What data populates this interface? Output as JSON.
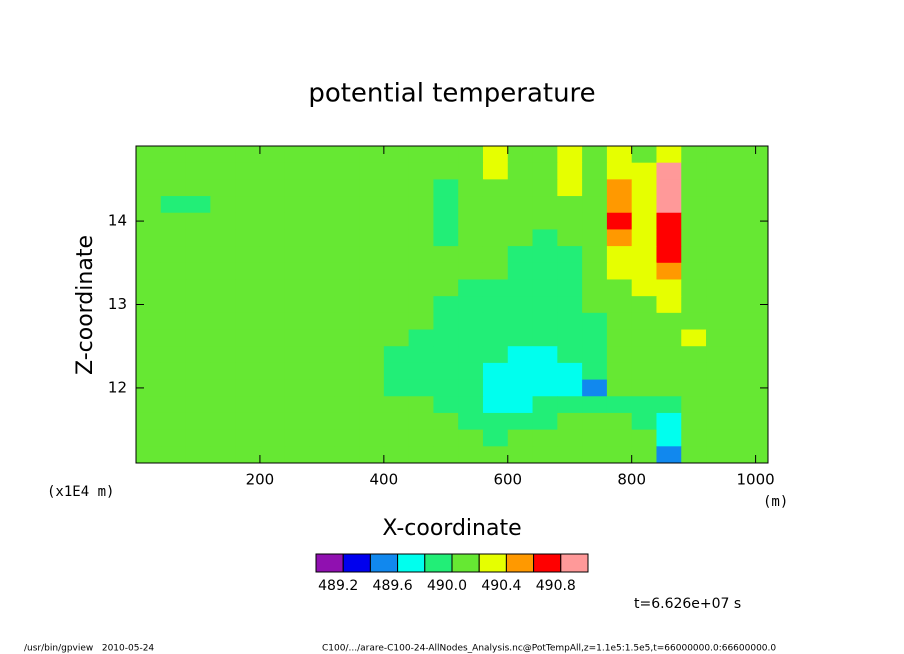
{
  "chart_data": {
    "type": "contour",
    "title": "potential temperature",
    "xlabel": "X-coordinate",
    "ylabel": "Z-coordinate",
    "yunit": "(x1E4 m)",
    "xunit": "(m)",
    "time_label": "t=6.626e+07 s",
    "footer_left": "/usr/bin/gpview   2010-05-24",
    "footer_right": "C100/.../arare-C100-24-AllNodes_Analysis.nc@PotTempAll,z=1.1e5:1.5e5,t=66000000.0:66600000.0",
    "xlim": [
      0,
      1020
    ],
    "ylim": [
      11.1,
      14.9
    ],
    "xticks": [
      200,
      400,
      600,
      800,
      1000
    ],
    "yticks": [
      12,
      13,
      14
    ],
    "x": [
      20,
      60,
      100,
      140,
      180,
      220,
      260,
      300,
      340,
      380,
      420,
      460,
      500,
      540,
      580,
      620,
      660,
      700,
      740,
      780,
      820,
      860,
      900,
      940,
      980
    ],
    "y": [
      14.8,
      14.6,
      14.4,
      14.2,
      14.0,
      13.8,
      13.6,
      13.4,
      13.2,
      13.0,
      12.8,
      12.6,
      12.4,
      12.2,
      12.0,
      11.8,
      11.6,
      11.4,
      11.2
    ],
    "z": [
      [
        490.1,
        490.1,
        490.1,
        490.1,
        490.1,
        490.1,
        490.1,
        490.1,
        490.1,
        490.1,
        490.1,
        490.1,
        490.1,
        490.1,
        490.3,
        490.1,
        490.1,
        490.3,
        490.1,
        490.3,
        490.1,
        490.3,
        490.1,
        490.1,
        490.1
      ],
      [
        490.1,
        490.1,
        490.1,
        490.1,
        490.1,
        490.1,
        490.1,
        490.1,
        490.1,
        490.1,
        490.1,
        490.1,
        490.1,
        490.1,
        490.3,
        490.1,
        490.1,
        490.3,
        490.1,
        490.3,
        490.3,
        490.9,
        490.1,
        490.1,
        490.1
      ],
      [
        490.1,
        490.1,
        490.1,
        490.1,
        490.1,
        490.1,
        490.1,
        490.1,
        490.1,
        490.1,
        490.1,
        490.1,
        489.9,
        490.1,
        490.1,
        490.1,
        490.1,
        490.3,
        490.1,
        490.5,
        490.3,
        490.9,
        490.1,
        490.1,
        490.1
      ],
      [
        490.1,
        489.9,
        489.9,
        490.1,
        490.1,
        490.1,
        490.1,
        490.1,
        490.1,
        490.1,
        490.1,
        490.1,
        489.9,
        490.1,
        490.1,
        490.1,
        490.1,
        490.1,
        490.1,
        490.5,
        490.3,
        490.9,
        490.1,
        490.1,
        490.1
      ],
      [
        490.1,
        490.1,
        490.1,
        490.1,
        490.1,
        490.1,
        490.1,
        490.1,
        490.1,
        490.1,
        490.1,
        490.1,
        489.9,
        490.1,
        490.1,
        490.1,
        490.1,
        490.1,
        490.1,
        490.7,
        490.3,
        490.7,
        490.1,
        490.1,
        490.1
      ],
      [
        490.1,
        490.1,
        490.1,
        490.1,
        490.1,
        490.1,
        490.1,
        490.1,
        490.1,
        490.1,
        490.1,
        490.1,
        489.9,
        490.1,
        490.1,
        490.1,
        489.9,
        490.1,
        490.1,
        490.5,
        490.3,
        490.7,
        490.1,
        490.1,
        490.1
      ],
      [
        490.1,
        490.1,
        490.1,
        490.1,
        490.1,
        490.1,
        490.1,
        490.1,
        490.1,
        490.1,
        490.1,
        490.1,
        490.1,
        490.1,
        490.1,
        489.9,
        489.9,
        489.9,
        490.1,
        490.3,
        490.3,
        490.7,
        490.1,
        490.1,
        490.1
      ],
      [
        490.1,
        490.1,
        490.1,
        490.1,
        490.1,
        490.1,
        490.1,
        490.1,
        490.1,
        490.1,
        490.1,
        490.1,
        490.1,
        490.1,
        490.1,
        489.9,
        489.9,
        489.9,
        490.1,
        490.3,
        490.3,
        490.5,
        490.1,
        490.1,
        490.1
      ],
      [
        490.1,
        490.1,
        490.1,
        490.1,
        490.1,
        490.1,
        490.1,
        490.1,
        490.1,
        490.1,
        490.1,
        490.1,
        490.1,
        489.9,
        489.9,
        489.9,
        489.9,
        489.9,
        490.1,
        490.1,
        490.3,
        490.3,
        490.1,
        490.1,
        490.1
      ],
      [
        490.1,
        490.1,
        490.1,
        490.1,
        490.1,
        490.1,
        490.1,
        490.1,
        490.1,
        490.1,
        490.1,
        490.1,
        489.9,
        489.9,
        489.9,
        489.9,
        489.9,
        489.9,
        490.1,
        490.1,
        490.1,
        490.3,
        490.1,
        490.1,
        490.1
      ],
      [
        490.1,
        490.1,
        490.1,
        490.1,
        490.1,
        490.1,
        490.1,
        490.1,
        490.1,
        490.1,
        490.1,
        490.1,
        489.9,
        489.9,
        489.9,
        489.9,
        489.9,
        489.9,
        489.9,
        490.1,
        490.1,
        490.1,
        490.1,
        490.1,
        490.1
      ],
      [
        490.1,
        490.1,
        490.1,
        490.1,
        490.1,
        490.1,
        490.1,
        490.1,
        490.1,
        490.1,
        490.1,
        489.9,
        489.9,
        489.9,
        489.9,
        489.9,
        489.9,
        489.9,
        489.9,
        490.1,
        490.1,
        490.1,
        490.3,
        490.1,
        490.1
      ],
      [
        490.1,
        490.1,
        490.1,
        490.1,
        490.1,
        490.1,
        490.1,
        490.1,
        490.1,
        490.1,
        489.9,
        489.9,
        489.9,
        489.9,
        489.9,
        489.7,
        489.7,
        489.9,
        489.9,
        490.1,
        490.1,
        490.1,
        490.1,
        490.1,
        490.1
      ],
      [
        490.1,
        490.1,
        490.1,
        490.1,
        490.1,
        490.1,
        490.1,
        490.1,
        490.1,
        490.1,
        489.9,
        489.9,
        489.9,
        489.9,
        489.7,
        489.7,
        489.7,
        489.7,
        489.9,
        490.1,
        490.1,
        490.1,
        490.1,
        490.1,
        490.1
      ],
      [
        490.1,
        490.1,
        490.1,
        490.1,
        490.1,
        490.1,
        490.1,
        490.1,
        490.1,
        490.1,
        489.9,
        489.9,
        489.9,
        489.9,
        489.7,
        489.7,
        489.7,
        489.7,
        489.5,
        490.1,
        490.1,
        490.1,
        490.1,
        490.1,
        490.1
      ],
      [
        490.1,
        490.1,
        490.1,
        490.1,
        490.1,
        490.1,
        490.1,
        490.1,
        490.1,
        490.1,
        490.1,
        490.1,
        489.9,
        489.9,
        489.7,
        489.7,
        489.9,
        489.9,
        489.9,
        489.9,
        489.9,
        489.9,
        490.1,
        490.1,
        490.1
      ],
      [
        490.1,
        490.1,
        490.1,
        490.1,
        490.1,
        490.1,
        490.1,
        490.1,
        490.1,
        490.1,
        490.1,
        490.1,
        490.1,
        489.9,
        489.9,
        489.9,
        489.9,
        490.1,
        490.1,
        490.1,
        489.9,
        489.7,
        490.1,
        490.1,
        490.1
      ],
      [
        490.1,
        490.1,
        490.1,
        490.1,
        490.1,
        490.1,
        490.1,
        490.1,
        490.1,
        490.1,
        490.1,
        490.1,
        490.1,
        490.1,
        489.9,
        490.1,
        490.1,
        490.1,
        490.1,
        490.1,
        490.1,
        489.7,
        490.1,
        490.1,
        490.1
      ],
      [
        490.1,
        490.1,
        490.1,
        490.1,
        490.1,
        490.1,
        490.1,
        490.1,
        490.1,
        490.1,
        490.1,
        490.1,
        490.1,
        490.1,
        490.1,
        490.1,
        490.1,
        490.1,
        490.1,
        490.1,
        490.1,
        489.5,
        490.1,
        490.1,
        490.1
      ]
    ],
    "levels": [
      489.2,
      489.4,
      489.6,
      489.8,
      490.0,
      490.2,
      490.4,
      490.6,
      490.8
    ],
    "level_colors": [
      "#9010b0",
      "#0000ee",
      "#1188ee",
      "#00ffee",
      "#22ee77",
      "#66e833",
      "#e6ff00",
      "#ff9900",
      "#ff0000",
      "#ff9999"
    ],
    "colorbar_ticks": [
      489.2,
      489.6,
      {
        "value": 490.0,
        "label": "490.0"
      },
      490.4,
      490.8
    ]
  }
}
